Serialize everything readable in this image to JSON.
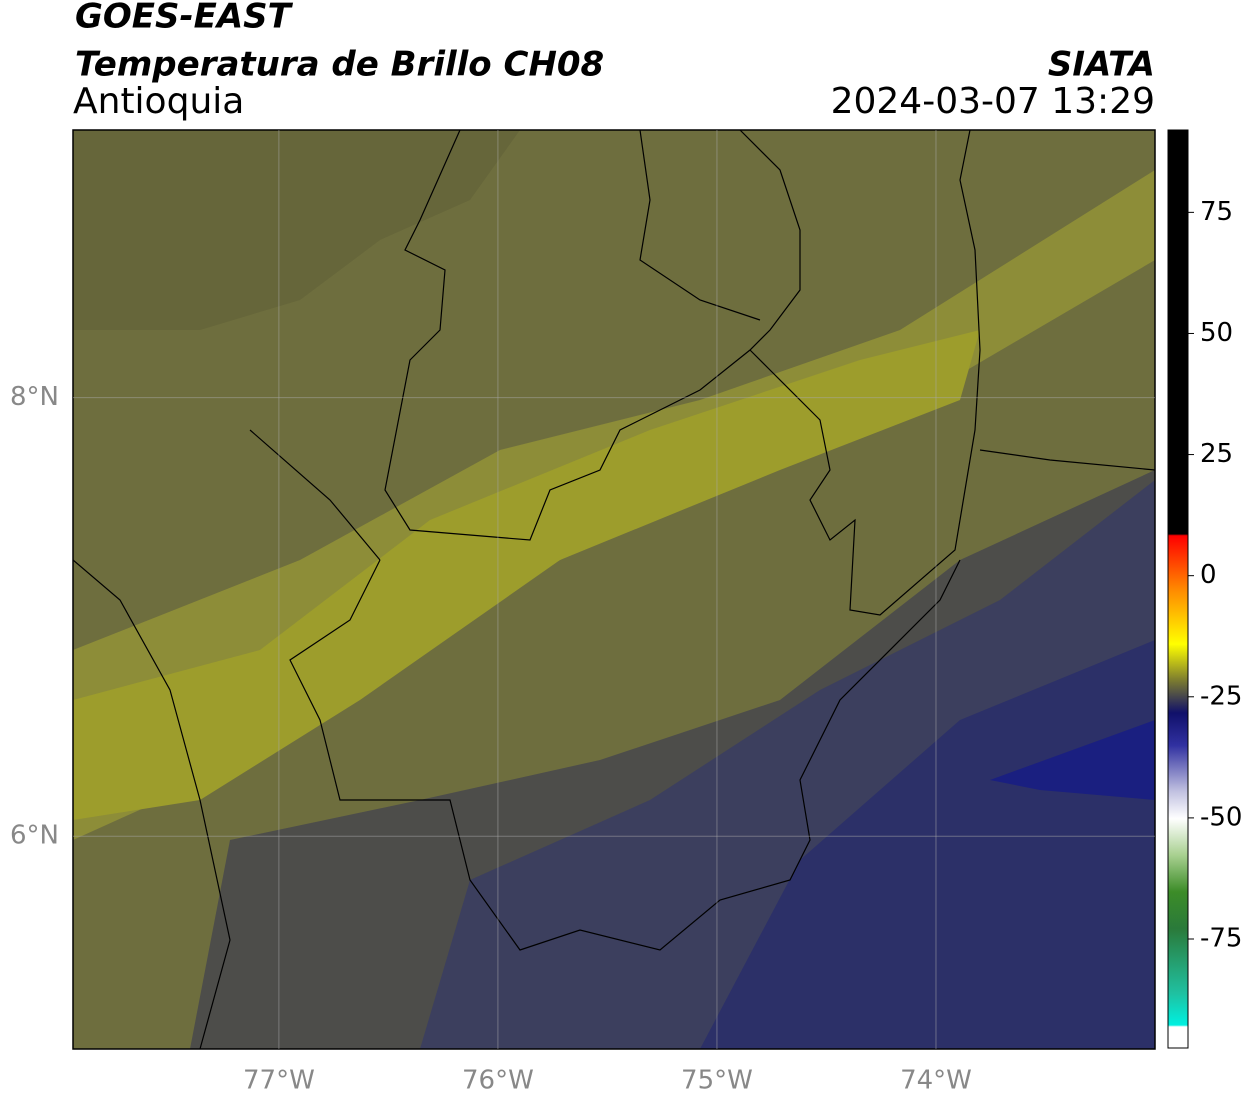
{
  "header": {
    "title": "GOES-EAST",
    "subtitle": "Temperatura de Brillo CH08",
    "region": "Antioquia",
    "agency": "SIATA",
    "datetime": "2024-03-07 13:29"
  },
  "map": {
    "xlim": [
      -77.94,
      -73.0
    ],
    "ylim": [
      5.03,
      9.22
    ],
    "xticks": [
      {
        "value": -77,
        "label": "77°W"
      },
      {
        "value": -76,
        "label": "76°W"
      },
      {
        "value": -75,
        "label": "75°W"
      },
      {
        "value": -74,
        "label": "74°W"
      }
    ],
    "yticks": [
      {
        "value": 6,
        "label": "6°N"
      },
      {
        "value": 8,
        "label": "8°N"
      }
    ]
  },
  "colorbar": {
    "lim": [
      -97.5,
      92
    ],
    "ticks": [
      75,
      50,
      25,
      0,
      -25,
      -50,
      -75
    ]
  }
}
